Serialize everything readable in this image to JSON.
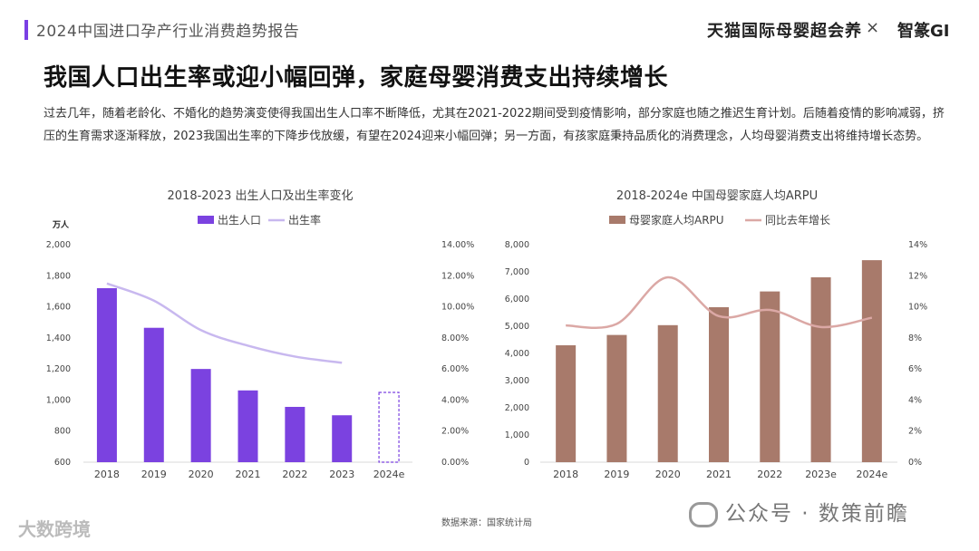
{
  "header": {
    "report_title": "2024中国进口孕产行业消费趋势报告",
    "brand": "天猫国际母婴超会养",
    "times": "×",
    "brand2": "智篆GI"
  },
  "headline": "我国人口出生率或迎小幅回弹，家庭母婴消费支出持续增长",
  "paragraph": "过去几年，随着老龄化、不婚化的趋势演变使得我国出生人口率不断降低，尤其在2021-2022期间受到疫情影响，部分家庭也随之推迟生育计划。后随着疫情的影响减弱，挤压的生育需求逐渐释放，2023我国出生率的下降步伐放缓，有望在2024迎来小幅回弹；另一方面，有孩家庭秉持品质化的消费理念，人均母婴消费支出将维持增长态势。",
  "source": "数据来源：国家统计局",
  "footer": {
    "logo": "大数跨境",
    "wechat": "公众号 · 数策前瞻"
  },
  "colors": {
    "accent": "#7a3fe4",
    "bar_purple": "#7b42e0",
    "line_lavender": "#c8b8ef",
    "bar_brown": "#a87a6b",
    "line_pink": "#dba8a5"
  },
  "chart_data": [
    {
      "type": "bar",
      "title": "2018-2023 出生人口及出生率变化",
      "y_unit": "万人",
      "categories": [
        "2018",
        "2019",
        "2020",
        "2021",
        "2022",
        "2023",
        "2024e"
      ],
      "series": [
        {
          "name": "出生人口",
          "type": "bar",
          "axis": "left",
          "values": [
            1720,
            1465,
            1200,
            1062,
            956,
            902,
            null
          ]
        },
        {
          "name": "出生率",
          "type": "line",
          "axis": "right",
          "values": [
            11.5,
            10.4,
            8.5,
            7.5,
            6.8,
            6.4,
            null
          ]
        }
      ],
      "projected_category": "2024e",
      "y_left": {
        "min": 600,
        "max": 2000,
        "ticks": [
          "2,000",
          "1,800",
          "1,600",
          "1,400",
          "1,200",
          "1,000",
          "800",
          "600"
        ]
      },
      "y_right": {
        "min": 0,
        "max": 14,
        "ticks": [
          "14.00%",
          "12.00%",
          "10.00%",
          "8.00%",
          "6.00%",
          "4.00%",
          "2.00%",
          "0.00%"
        ]
      }
    },
    {
      "type": "bar",
      "title": "2018-2024e 中国母婴家庭人均ARPU",
      "categories": [
        "2018",
        "2019",
        "2020",
        "2021",
        "2022",
        "2023e",
        "2024e"
      ],
      "series": [
        {
          "name": "母婴家庭人均ARPU",
          "type": "bar",
          "axis": "left",
          "values": [
            4300,
            4680,
            5040,
            5700,
            6280,
            6800,
            7430
          ]
        },
        {
          "name": "同比去年增长",
          "type": "line",
          "axis": "right",
          "values": [
            8.8,
            8.9,
            11.9,
            9.4,
            9.8,
            8.7,
            9.3
          ]
        }
      ],
      "y_left": {
        "min": 0,
        "max": 8000,
        "ticks": [
          "8,000",
          "7,000",
          "6,000",
          "5,000",
          "4,000",
          "3,000",
          "2,000",
          "1,000",
          "0"
        ]
      },
      "y_right": {
        "min": 0,
        "max": 14,
        "ticks": [
          "14%",
          "12%",
          "10%",
          "8%",
          "6%",
          "4%",
          "2%",
          "0%"
        ]
      }
    }
  ]
}
